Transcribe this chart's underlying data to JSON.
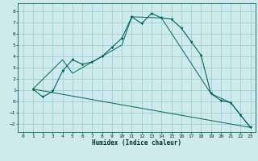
{
  "xlabel": "Humidex (Indice chaleur)",
  "background_color": "#ceeaea",
  "grid_color": "#9ecece",
  "line_color": "#006858",
  "xlim": [
    -0.5,
    23.5
  ],
  "ylim": [
    -2.7,
    8.7
  ],
  "xticks": [
    0,
    1,
    2,
    3,
    4,
    5,
    6,
    7,
    8,
    9,
    10,
    11,
    12,
    13,
    14,
    15,
    16,
    17,
    18,
    19,
    20,
    21,
    22,
    23
  ],
  "yticks": [
    -2,
    -1,
    0,
    1,
    2,
    3,
    4,
    5,
    6,
    7,
    8
  ],
  "series1_x": [
    1,
    2,
    3,
    4,
    5,
    6,
    7,
    8,
    9,
    10,
    11,
    12,
    13,
    14,
    15,
    16,
    17,
    18,
    19,
    20,
    21,
    22,
    23
  ],
  "series1_y": [
    1.1,
    0.4,
    0.9,
    2.7,
    3.7,
    3.3,
    3.5,
    4.0,
    4.8,
    5.6,
    7.5,
    6.9,
    7.8,
    7.4,
    7.3,
    6.5,
    5.3,
    4.1,
    0.7,
    0.1,
    -0.1,
    -1.2,
    -2.3
  ],
  "series2_x": [
    1,
    4,
    5,
    10,
    11,
    14,
    19,
    21,
    22,
    23
  ],
  "series2_y": [
    1.1,
    3.7,
    2.5,
    5.0,
    7.5,
    7.4,
    0.7,
    -0.1,
    -1.2,
    -2.3
  ],
  "series3_x": [
    1,
    23
  ],
  "series3_y": [
    1.1,
    -2.3
  ]
}
